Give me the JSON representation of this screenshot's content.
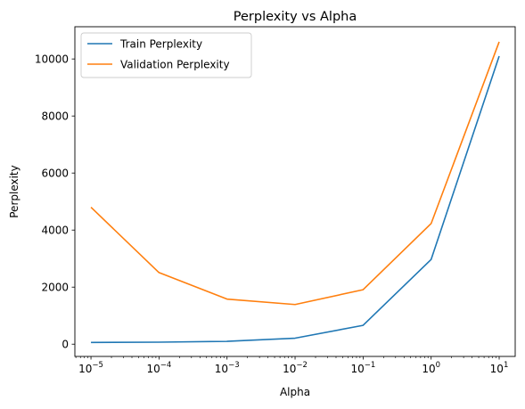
{
  "chart_data": {
    "type": "line",
    "title": "Perplexity vs Alpha",
    "xlabel": "Alpha",
    "ylabel": "Perplexity",
    "xscale": "log",
    "x": [
      1e-05,
      0.0001,
      0.001,
      0.01,
      0.1,
      1,
      10
    ],
    "xticks": [
      {
        "value": 1e-05,
        "base": "10",
        "exp": "−5"
      },
      {
        "value": 0.0001,
        "base": "10",
        "exp": "−4"
      },
      {
        "value": 0.001,
        "base": "10",
        "exp": "−3"
      },
      {
        "value": 0.01,
        "base": "10",
        "exp": "−2"
      },
      {
        "value": 0.1,
        "base": "10",
        "exp": "−1"
      },
      {
        "value": 1,
        "base": "10",
        "exp": "0"
      },
      {
        "value": 10,
        "base": "10",
        "exp": "1"
      }
    ],
    "yticks": [
      0,
      2000,
      4000,
      6000,
      8000,
      10000
    ],
    "xlim": [
      5.8e-06,
      17.2
    ],
    "ylim": [
      -430,
      11130
    ],
    "grid": false,
    "legend_position": "top-left",
    "series": [
      {
        "name": "Train Perplexity",
        "color": "#1f77b4",
        "values": [
          60,
          70,
          100,
          210,
          660,
          2970,
          10100
        ]
      },
      {
        "name": "Validation Perplexity",
        "color": "#ff7f0e",
        "values": [
          4800,
          2510,
          1580,
          1390,
          1910,
          4230,
          10600
        ]
      }
    ]
  }
}
